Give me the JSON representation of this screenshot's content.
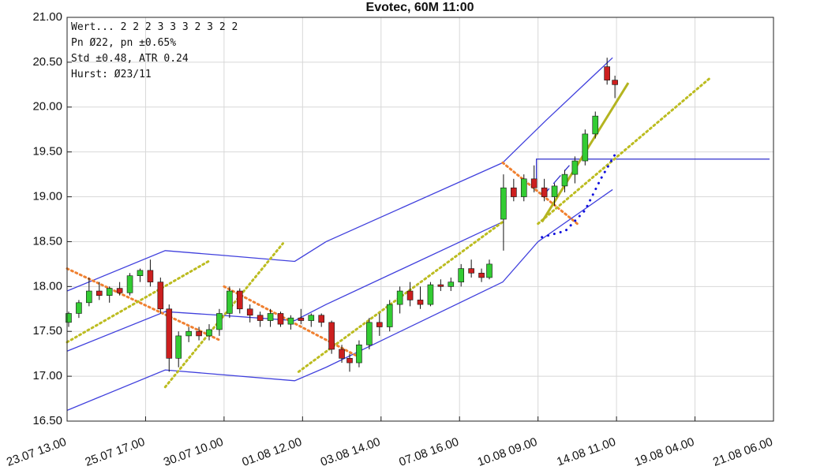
{
  "chart_data": {
    "type": "candlestick",
    "title": "Evotec, 60M 11:00",
    "annotations": [
      "Wert...  2  2  2  3  3  3  2  3  2  2",
      "Pn  Ø22, pn ±0.65%",
      "Std ±0.48, ATR 0.24",
      "Hurst: Ø23/11"
    ],
    "up_color": "#33cc33",
    "down_color": "#cc1f1f",
    "grid": true,
    "xlim": [
      0,
      9
    ],
    "ylim": [
      16.5,
      21
    ],
    "xticks": [
      {
        "value": 0,
        "label": "23.07 13.00"
      },
      {
        "value": 1,
        "label": "25.07 17.00"
      },
      {
        "value": 2,
        "label": "30.07 10.00"
      },
      {
        "value": 3,
        "label": "01.08 12.00"
      },
      {
        "value": 4,
        "label": "03.08 14.00"
      },
      {
        "value": 5,
        "label": "07.08 16.00"
      },
      {
        "value": 6,
        "label": "10.08 09.00"
      },
      {
        "value": 7,
        "label": "14.08 11.00"
      },
      {
        "value": 8,
        "label": "19.08 04.00"
      },
      {
        "value": 9,
        "label": "21.08 06.00"
      }
    ],
    "yticks": [
      {
        "value": 16.5,
        "label": "16.50"
      },
      {
        "value": 17,
        "label": "17.00"
      },
      {
        "value": 17.5,
        "label": "17.50"
      },
      {
        "value": 18,
        "label": "18.00"
      },
      {
        "value": 18.5,
        "label": "18.50"
      },
      {
        "value": 19,
        "label": "19.00"
      },
      {
        "value": 19.5,
        "label": "19.50"
      },
      {
        "value": 20,
        "label": "20.00"
      },
      {
        "value": 20.5,
        "label": "20.50"
      },
      {
        "value": 21,
        "label": "21.00"
      }
    ],
    "x": [
      0.02,
      0.15,
      0.28,
      0.41,
      0.54,
      0.67,
      0.8,
      0.93,
      1.06,
      1.19,
      1.3,
      1.42,
      1.55,
      1.68,
      1.81,
      1.94,
      2.07,
      2.2,
      2.33,
      2.46,
      2.59,
      2.72,
      2.85,
      2.98,
      3.11,
      3.24,
      3.37,
      3.5,
      3.6,
      3.72,
      3.85,
      3.98,
      4.11,
      4.24,
      4.37,
      4.5,
      4.63,
      4.76,
      4.89,
      5.02,
      5.15,
      5.28,
      5.38,
      5.56,
      5.69,
      5.82,
      5.95,
      6.08,
      6.21,
      6.34,
      6.47,
      6.6,
      6.73,
      6.88,
      6.98
    ],
    "open": [
      17.6,
      17.7,
      17.82,
      17.95,
      17.9,
      17.98,
      17.93,
      18.12,
      18.18,
      18.05,
      17.75,
      17.2,
      17.45,
      17.5,
      17.45,
      17.52,
      17.7,
      17.95,
      17.75,
      17.68,
      17.62,
      17.7,
      17.58,
      17.65,
      17.62,
      17.68,
      17.6,
      17.3,
      17.2,
      17.15,
      17.35,
      17.6,
      17.55,
      17.8,
      17.95,
      17.85,
      17.8,
      18.02,
      18.0,
      18.05,
      18.2,
      18.15,
      18.1,
      18.75,
      19.1,
      19.0,
      19.2,
      19.1,
      19.0,
      19.12,
      19.25,
      19.4,
      19.7,
      20.45,
      20.3
    ],
    "high": [
      17.72,
      17.85,
      18.1,
      18.05,
      18.0,
      18.05,
      18.15,
      18.2,
      18.3,
      18.1,
      17.8,
      17.5,
      17.55,
      17.55,
      17.58,
      17.75,
      18.0,
      17.98,
      17.8,
      17.72,
      17.75,
      17.72,
      17.68,
      17.75,
      17.7,
      17.7,
      17.62,
      17.35,
      17.25,
      17.4,
      17.65,
      17.7,
      17.85,
      18.0,
      18.05,
      18.0,
      18.05,
      18.08,
      18.1,
      18.25,
      18.3,
      18.2,
      18.3,
      19.25,
      19.2,
      19.25,
      19.35,
      19.2,
      19.15,
      19.3,
      19.45,
      19.75,
      19.95,
      20.55,
      20.35
    ],
    "low": [
      17.55,
      17.65,
      17.78,
      17.85,
      17.82,
      17.9,
      17.9,
      18.05,
      18.0,
      17.7,
      17.05,
      17.1,
      17.38,
      17.4,
      17.4,
      17.45,
      17.65,
      17.7,
      17.6,
      17.55,
      17.55,
      17.55,
      17.52,
      17.58,
      17.55,
      17.55,
      17.25,
      17.15,
      17.05,
      17.1,
      17.3,
      17.45,
      17.5,
      17.7,
      17.78,
      17.75,
      17.78,
      17.95,
      17.95,
      18.0,
      18.1,
      18.05,
      18.08,
      18.4,
      18.95,
      18.95,
      19.05,
      18.95,
      18.9,
      19.05,
      19.15,
      19.35,
      19.65,
      20.25,
      20.1
    ],
    "close": [
      17.7,
      17.82,
      17.95,
      17.9,
      17.98,
      17.93,
      18.12,
      18.18,
      18.05,
      17.75,
      17.2,
      17.45,
      17.5,
      17.45,
      17.52,
      17.7,
      17.95,
      17.75,
      17.68,
      17.62,
      17.7,
      17.58,
      17.65,
      17.62,
      17.68,
      17.6,
      17.3,
      17.2,
      17.15,
      17.35,
      17.6,
      17.55,
      17.8,
      17.95,
      17.85,
      17.8,
      18.02,
      18.0,
      18.05,
      18.2,
      18.15,
      18.1,
      18.25,
      19.1,
      19.0,
      19.2,
      19.1,
      19.0,
      19.12,
      19.25,
      19.4,
      19.7,
      19.9,
      20.3,
      20.25
    ],
    "overlays": [
      {
        "color": "#4040dd",
        "style": "solid",
        "x": [
          0,
          1.25,
          1.95,
          2.9,
          3.3,
          5.55,
          6.1,
          6.95
        ],
        "y": [
          17.95,
          18.4,
          18.35,
          18.28,
          18.5,
          19.38,
          19.85,
          20.55
        ]
      },
      {
        "color": "#4040dd",
        "style": "solid",
        "x": [
          0,
          1.25,
          1.95,
          2.9,
          3.3,
          5.55
        ],
        "y": [
          17.28,
          17.72,
          17.68,
          17.62,
          17.8,
          18.72
        ]
      },
      {
        "color": "#4040dd",
        "style": "solid",
        "x": [
          0,
          1.25,
          2.9,
          3.3,
          5.55,
          6.0,
          6.95
        ],
        "y": [
          16.62,
          17.07,
          16.95,
          17.1,
          18.05,
          18.5,
          19.08
        ]
      },
      {
        "color": "#3030cc",
        "style": "solid",
        "x": [
          5.98,
          5.98,
          8.95
        ],
        "y": [
          19.1,
          19.42,
          19.42
        ]
      },
      {
        "color": "#3030cc",
        "style": "dashed",
        "x": [
          6.05,
          6.4
        ],
        "y": [
          19.0,
          19.35
        ]
      },
      {
        "color": "#f08030",
        "style": "dotted",
        "x": [
          0,
          1.95
        ],
        "y": [
          18.2,
          17.4
        ]
      },
      {
        "color": "#f08030",
        "style": "dotted",
        "x": [
          2.0,
          3.75
        ],
        "y": [
          18.0,
          17.2
        ]
      },
      {
        "color": "#f08030",
        "style": "dotted",
        "x": [
          5.55,
          6.5
        ],
        "y": [
          19.38,
          18.7
        ]
      },
      {
        "color": "#bcbc20",
        "style": "dotted",
        "x": [
          0,
          1.8
        ],
        "y": [
          17.38,
          18.28
        ]
      },
      {
        "color": "#bcbc20",
        "style": "dotted",
        "x": [
          1.25,
          2.75
        ],
        "y": [
          16.88,
          18.48
        ]
      },
      {
        "color": "#bcbc20",
        "style": "dotted",
        "x": [
          2.95,
          5.55
        ],
        "y": [
          17.05,
          18.72
        ]
      },
      {
        "color": "#bcbc20",
        "style": "dotted",
        "x": [
          6.0,
          8.2
        ],
        "y": [
          18.7,
          20.33
        ]
      },
      {
        "color": "#b4b420",
        "style": "thick",
        "x": [
          6.05,
          7.15
        ],
        "y": [
          18.72,
          20.27
        ]
      },
      {
        "color": "#1010dd",
        "style": "dots",
        "x": [
          6.05,
          6.35,
          6.6,
          6.8,
          7.0
        ],
        "y": [
          18.55,
          18.62,
          18.85,
          19.2,
          19.5
        ]
      }
    ]
  }
}
